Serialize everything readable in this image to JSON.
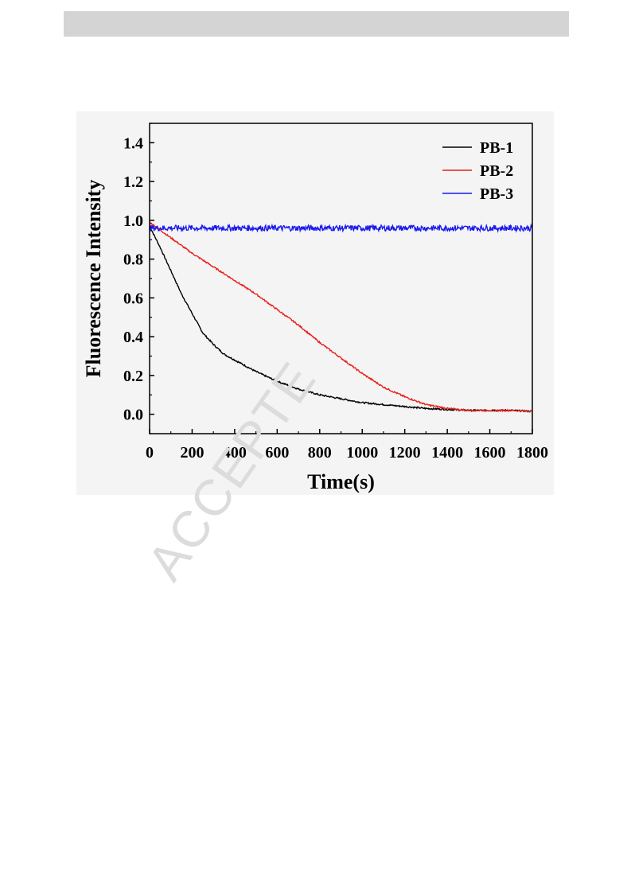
{
  "watermark": "ACCEPTE",
  "chart_data": {
    "type": "line",
    "title": "",
    "xlabel": "Time(s)",
    "ylabel": "Fluorescence Intensity",
    "xlim": [
      0,
      1800
    ],
    "ylim": [
      -0.1,
      1.5
    ],
    "xticks": [
      0,
      200,
      400,
      600,
      800,
      1000,
      1200,
      1400,
      1600,
      1800
    ],
    "xtick_labels": [
      "0",
      "200",
      "400",
      "600",
      "800",
      "1000",
      "1200",
      "1400",
      "1600",
      "1800"
    ],
    "yticks": [
      0.0,
      0.2,
      0.4,
      0.6,
      0.8,
      1.0,
      1.2,
      1.4
    ],
    "ytick_labels": [
      "0.0",
      "0.2",
      "0.4",
      "0.6",
      "0.8",
      "1.0",
      "1.2",
      "1.4"
    ],
    "grid": false,
    "legend": "top-right",
    "series": [
      {
        "name": "PB-1",
        "color": "#000000",
        "x": [
          0,
          50,
          100,
          150,
          200,
          250,
          300,
          350,
          400,
          500,
          600,
          700,
          800,
          900,
          1000,
          1100,
          1200,
          1300,
          1400,
          1500,
          1600,
          1700,
          1800
        ],
        "y": [
          0.97,
          0.86,
          0.74,
          0.62,
          0.52,
          0.42,
          0.36,
          0.31,
          0.28,
          0.22,
          0.17,
          0.13,
          0.1,
          0.08,
          0.06,
          0.05,
          0.04,
          0.03,
          0.025,
          0.02,
          0.02,
          0.02,
          0.015
        ]
      },
      {
        "name": "PB-2",
        "color": "#e8201c",
        "x": [
          0,
          100,
          200,
          300,
          400,
          500,
          600,
          700,
          800,
          900,
          1000,
          1100,
          1200,
          1300,
          1400,
          1500,
          1600,
          1700,
          1800
        ],
        "y": [
          0.99,
          0.91,
          0.83,
          0.76,
          0.69,
          0.62,
          0.54,
          0.46,
          0.37,
          0.29,
          0.21,
          0.14,
          0.09,
          0.05,
          0.03,
          0.02,
          0.02,
          0.02,
          0.015
        ]
      },
      {
        "name": "PB-3",
        "color": "#1a1aee",
        "x": [
          0,
          100,
          200,
          300,
          400,
          500,
          600,
          700,
          800,
          900,
          1000,
          1100,
          1200,
          1300,
          1400,
          1500,
          1600,
          1700,
          1800
        ],
        "y": [
          0.96,
          0.96,
          0.96,
          0.96,
          0.96,
          0.96,
          0.96,
          0.96,
          0.96,
          0.96,
          0.96,
          0.96,
          0.96,
          0.96,
          0.96,
          0.96,
          0.96,
          0.96,
          0.96
        ],
        "noise": 0.015
      }
    ]
  }
}
